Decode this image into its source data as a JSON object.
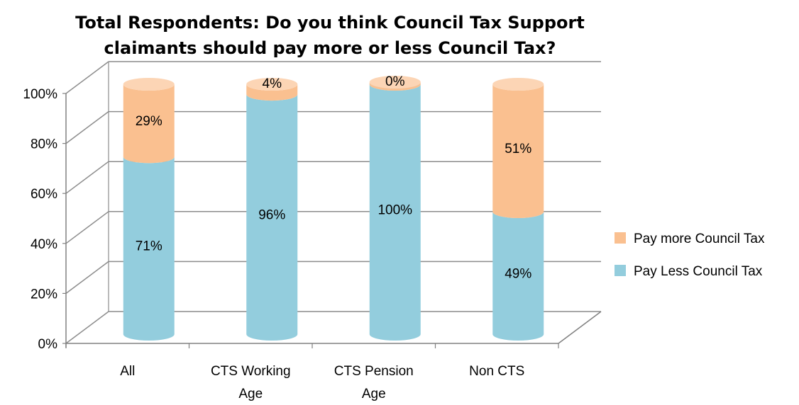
{
  "chart_data": {
    "type": "bar",
    "stacked": true,
    "style": "3d-cylinder",
    "title": "Total Respondents: Do you think Council Tax Support claimants should pay more or less Council Tax?",
    "title_lines": [
      "Total Respondents: Do you think Council Tax Support",
      "claimants should pay more or less Council Tax?"
    ],
    "xlabel": "",
    "ylabel": "",
    "ylim": [
      0,
      100
    ],
    "y_ticks": [
      0,
      20,
      40,
      60,
      80,
      100
    ],
    "y_tick_labels": [
      "0%",
      "20%",
      "40%",
      "60%",
      "80%",
      "100%"
    ],
    "grid": true,
    "legend_position": "right",
    "categories": [
      "All",
      "CTS Working Age",
      "CTS Pension Age",
      "Non CTS"
    ],
    "category_lines": [
      [
        "All"
      ],
      [
        "CTS Working",
        "Age"
      ],
      [
        "CTS Pension",
        "Age"
      ],
      [
        "Non CTS"
      ]
    ],
    "series": [
      {
        "name": "Pay Less Council Tax",
        "values": [
          71,
          96,
          100,
          49
        ],
        "labels": [
          "71%",
          "96%",
          "100%",
          "49%"
        ],
        "color": "#93CDDD"
      },
      {
        "name": "Pay more Council Tax",
        "values": [
          29,
          4,
          0,
          51
        ],
        "labels": [
          "29%",
          "4%",
          "0%",
          "51%"
        ],
        "color": "#FAC090"
      }
    ],
    "legend_order": [
      "Pay more Council Tax",
      "Pay Less Council Tax"
    ],
    "colors": {
      "gridline": "#8C8C8C",
      "axis": "#808080",
      "less_side": "#93CDDD",
      "less_top": "#B7DEE8",
      "more_side": "#FAC090",
      "more_top": "#FCD5B5"
    }
  }
}
